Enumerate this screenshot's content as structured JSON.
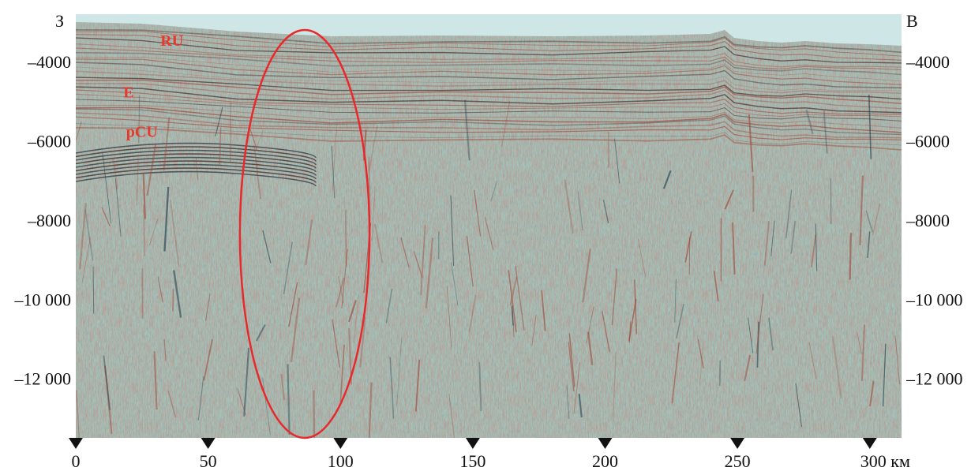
{
  "section": {
    "left_label": "З",
    "right_label": "В",
    "x_unit": "км",
    "colors": {
      "sea": "#cfe6e6",
      "background": "#a9c2b6",
      "reflector_dark": "#3a1f1d",
      "reflector_red": "#9e4636",
      "highlight": "#e8282b",
      "horizon_text": "#e53a2c",
      "marker": "#111111"
    }
  },
  "chart_data": {
    "type": "other",
    "description_free": true,
    "x_ticks": [
      0,
      50,
      100,
      150,
      200,
      250,
      300
    ],
    "x_tick_labels": [
      "0",
      "50",
      "100",
      "150",
      "200",
      "250",
      "300 км"
    ],
    "y_ticks": [
      -4000,
      -6000,
      -8000,
      -10000,
      -12000
    ],
    "y_tick_labels": [
      "–4000",
      "–6000",
      "–8000",
      "–10 000",
      "–12 000"
    ],
    "x_range": [
      0,
      312
    ],
    "y_range": [
      -13500,
      -2800
    ],
    "horizons": [
      {
        "label": "RU",
        "x": 32,
        "depth": -3600
      },
      {
        "label": "E",
        "x": 18,
        "depth": -4900
      },
      {
        "label": "pCU",
        "x": 19,
        "depth": -5900
      }
    ],
    "highlight_ellipse": {
      "center_x": 86.5,
      "center_depth": -8350,
      "half_width_km": 24.5,
      "half_height_depth": 5150
    }
  }
}
